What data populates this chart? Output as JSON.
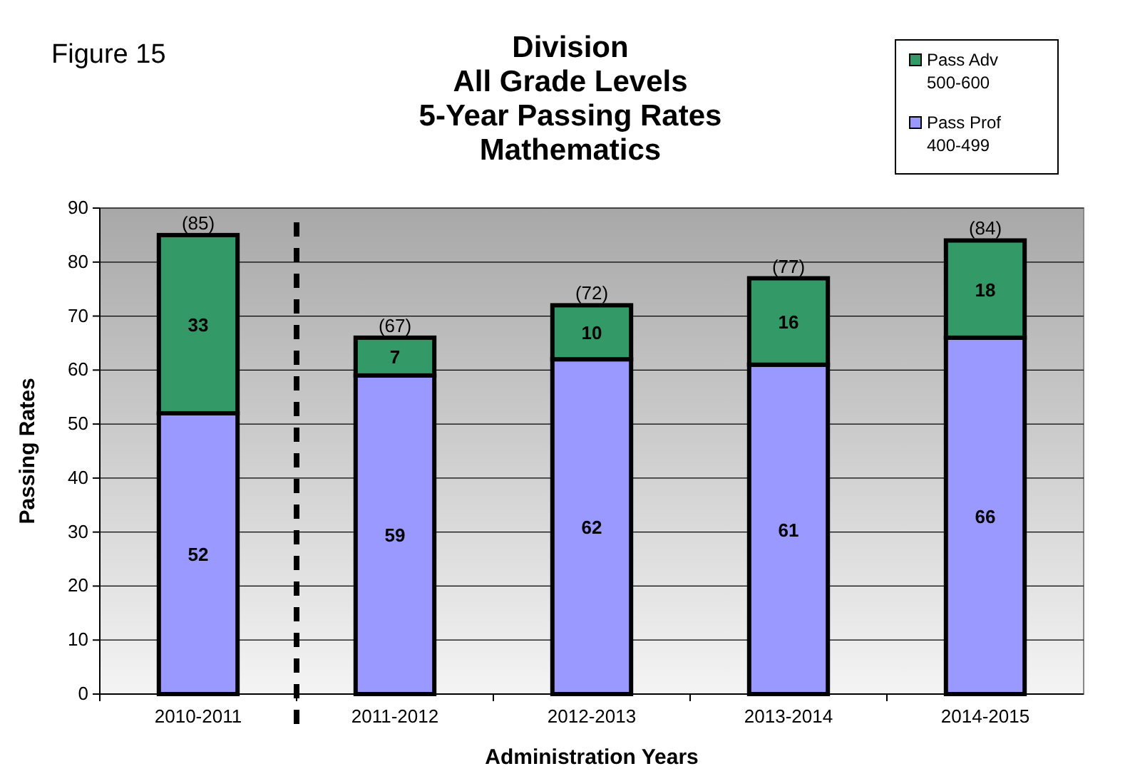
{
  "chart_data": {
    "type": "bar",
    "title": "Division\nAll Grade Levels\n5-Year Passing Rates\nMathematics",
    "xlabel": "Administration Years",
    "ylabel": "Passing Rates",
    "annotations": [
      "Figure 15"
    ],
    "categories": [
      "2010-2011",
      "2011-2012",
      "2012-2013",
      "2013-2014",
      "2014-2015"
    ],
    "stacked": true,
    "series": [
      {
        "name": "Pass Prof\n400-499",
        "color": "#9999ff",
        "values": [
          52,
          59,
          62,
          61,
          66
        ]
      },
      {
        "name": "Pass Adv\n500-600",
        "color": "#339966",
        "values": [
          33,
          7,
          10,
          16,
          18
        ]
      }
    ],
    "totals": [
      "(85)",
      "(67)",
      "(72)",
      "(77)",
      "(84)"
    ],
    "data_labels": true,
    "ylim": [
      0,
      90
    ],
    "yticks": [
      0,
      10,
      20,
      30,
      40,
      50,
      60,
      70,
      80,
      90
    ],
    "grid": "y",
    "legend": "top right"
  }
}
